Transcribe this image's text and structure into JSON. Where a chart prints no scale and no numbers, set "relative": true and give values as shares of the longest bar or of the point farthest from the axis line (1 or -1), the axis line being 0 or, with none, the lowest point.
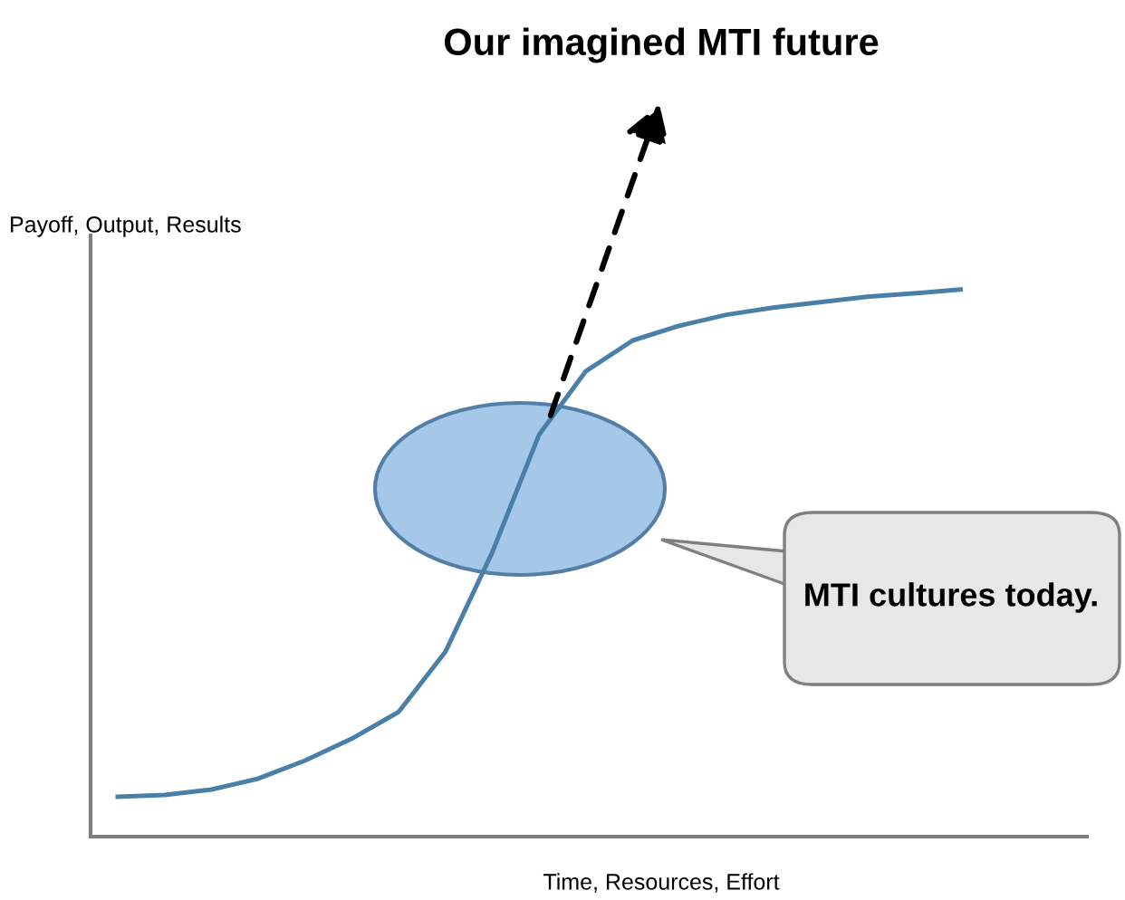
{
  "chart_data": {
    "type": "line",
    "relative": true,
    "title": "Our imagined MTI future",
    "xlabel": "Time, Resources, Effort",
    "ylabel": "Payoff, Output, Results",
    "categories": [
      null,
      null,
      null,
      null,
      null,
      null,
      null,
      null,
      null,
      null,
      null,
      null,
      null,
      null,
      null,
      null,
      null,
      null,
      null
    ],
    "series": [
      {
        "color": "#4a7fa8",
        "values": [
          0.073,
          0.076,
          0.086,
          0.106,
          0.139,
          0.179,
          0.228,
          0.338,
          0.52,
          0.735,
          0.851,
          0.907,
          0.934,
          0.954,
          0.967,
          0.977,
          0.987,
          0.993,
          1.0
        ]
      }
    ],
    "annotations": [
      "MTI cultures today."
    ],
    "legend": false
  }
}
